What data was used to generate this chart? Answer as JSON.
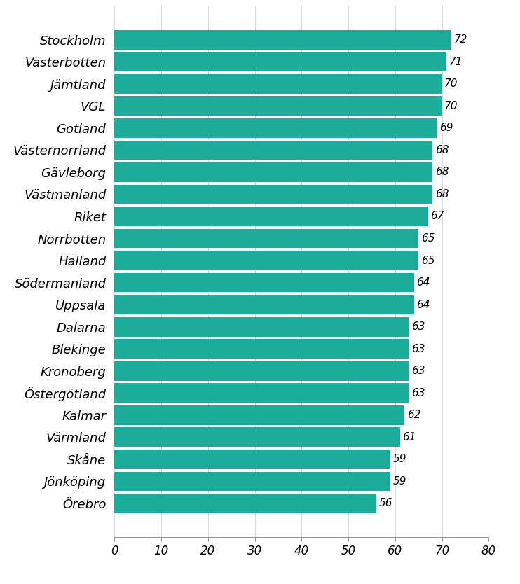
{
  "categories": [
    "Stockholm",
    "Västerbotten",
    "Jämtland",
    "VGL",
    "Gotland",
    "Västernorrland",
    "Gävleborg",
    "Västmanland",
    "Riket",
    "Norrbotten",
    "Halland",
    "Södermanland",
    "Uppsala",
    "Dalarna",
    "Blekinge",
    "Kronoberg",
    "Östergötland",
    "Kalmar",
    "Värmland",
    "Skåne",
    "Jönköping",
    "Örebro"
  ],
  "values": [
    72,
    71,
    70,
    70,
    69,
    68,
    68,
    68,
    67,
    65,
    65,
    64,
    64,
    63,
    63,
    63,
    63,
    62,
    61,
    59,
    59,
    56
  ],
  "bar_color": "#1BAD99",
  "xlim": [
    0,
    80
  ],
  "xticks": [
    0,
    10,
    20,
    30,
    40,
    50,
    60,
    70,
    80
  ],
  "label_fontsize": 13,
  "tick_fontsize": 12,
  "value_fontsize": 11,
  "background_color": "#ffffff",
  "bar_height": 0.88
}
